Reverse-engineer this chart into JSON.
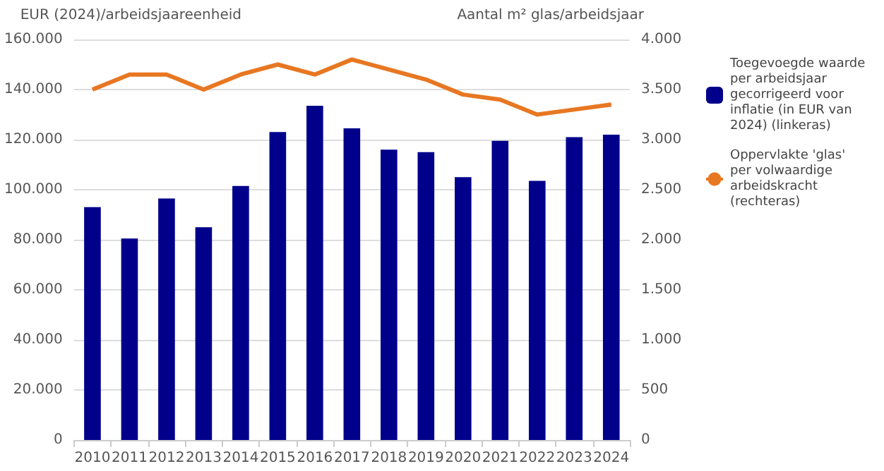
{
  "chart_data": {
    "type": "bar",
    "ylabel": "EUR (2024)/arbeidsjaareenheid",
    "y2label": "Aantal m² glas/arbeidsjaar",
    "categories": [
      "2010",
      "2011",
      "2012",
      "2013",
      "2014",
      "2015",
      "2016",
      "2017",
      "2018",
      "2019",
      "2020",
      "2021",
      "2022",
      "2023",
      "2024"
    ],
    "series": [
      {
        "name": "Toegevoegde waarde per arbeidsjaar gecorrigeerd voor inflatie (in EUR van 2024) (linkeras)",
        "color": "#00008b",
        "values": [
          93000,
          80500,
          96500,
          85000,
          101500,
          123000,
          133500,
          124500,
          116000,
          115000,
          105000,
          119500,
          103500,
          121000,
          122000
        ]
      },
      {
        "name": "Oppervlakte 'glas' per volwaardige arbeidskracht (rechteras)",
        "type": "line",
        "axis": "y2",
        "color": "#e87722",
        "values": [
          3500,
          3650,
          3650,
          3500,
          3650,
          3750,
          3650,
          3800,
          3700,
          3600,
          3450,
          3400,
          3250,
          3300,
          3350
        ]
      }
    ],
    "ylim": [
      0,
      160000
    ],
    "yticks": [
      0,
      {
        "value": 20000,
        "label": "20.000"
      },
      {
        "value": 40000,
        "label": "40.000"
      },
      {
        "value": 60000,
        "label": "60.000"
      },
      {
        "value": 80000,
        "label": "80.000"
      },
      {
        "value": 100000,
        "label": "100.000"
      },
      {
        "value": 120000,
        "label": "120.000"
      },
      {
        "value": 140000,
        "label": "140.000"
      },
      {
        "value": 160000,
        "label": "160.000"
      }
    ],
    "y2lim": [
      0,
      4000
    ],
    "y2ticks": [
      0,
      500,
      {
        "value": 1000,
        "label": "1.000"
      },
      {
        "value": 1500,
        "label": "1.500"
      },
      {
        "value": 2000,
        "label": "2.000"
      },
      {
        "value": 2500,
        "label": "2.500"
      },
      {
        "value": 3000,
        "label": "3.000"
      },
      {
        "value": 3500,
        "label": "3.500"
      },
      {
        "value": 4000,
        "label": "4.000"
      }
    ],
    "grid": "y",
    "legend": "right",
    "marker": "none"
  }
}
